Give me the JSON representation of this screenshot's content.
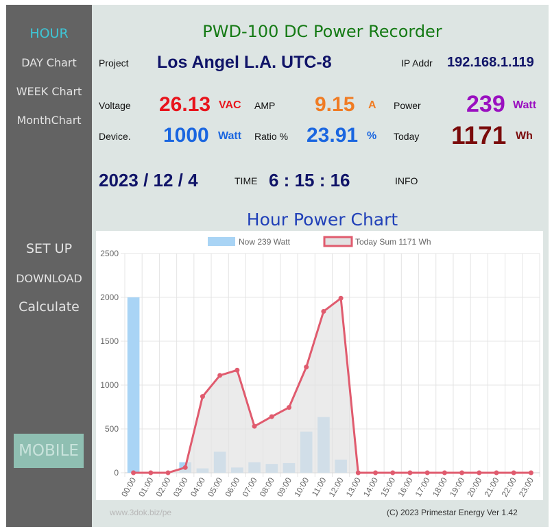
{
  "sidebar": {
    "hour": "HOUR",
    "day_chart": "DAY Chart",
    "week_chart": "WEEK Chart",
    "month_chart": "MonthChart",
    "setup": "SET UP",
    "download": "DOWNLOAD",
    "calculate": "Calculate",
    "mobile": "MOBILE"
  },
  "header": {
    "title": "PWD-100  DC Power Recorder"
  },
  "info": {
    "project_label": "Project",
    "project_value": "Los Angel L.A. UTC-8",
    "ip_label": "IP Addr",
    "ip_value": "192.168.1.119",
    "voltage_label": "Voltage",
    "voltage_value": "26.13",
    "voltage_unit": "VAC",
    "amp_label": "AMP",
    "amp_value": "9.15",
    "amp_unit": "A",
    "power_label": "Power",
    "power_value": "239",
    "power_unit": "Watt",
    "device_label": "Device.",
    "device_value": "1000",
    "device_unit": "Watt",
    "ratio_label": "Ratio %",
    "ratio_value": "23.91",
    "ratio_unit": "%",
    "today_label": "Today",
    "today_value": "1171",
    "today_unit": "Wh",
    "date_value": "2023 / 12 / 4",
    "time_label": "TIME",
    "time_value": "6 : 15 : 16",
    "info_label": "INFO"
  },
  "chart_title": "Hour Power Chart",
  "colors": {
    "voltage": "#e8141c",
    "amp": "#f07c24",
    "power": "#9a10c0",
    "device": "#1a66e0",
    "today": "#7a0b0b",
    "navy": "#101468",
    "bar_fill": "#a9d4f5",
    "line": "#e05b6e",
    "area": "#e2e2e2"
  },
  "chart_data": {
    "type": "bar",
    "categories": [
      "00:00",
      "01:00",
      "02:00",
      "03:00",
      "04:00",
      "05:00",
      "06:00",
      "07:00",
      "08:00",
      "09:00",
      "10:00",
      "11:00",
      "12:00",
      "13:00",
      "14:00",
      "15:00",
      "16:00",
      "17:00",
      "18:00",
      "19:00",
      "20:00",
      "21:00",
      "22:00",
      "23:00"
    ],
    "series": [
      {
        "name": "Now 239 Watt",
        "type": "bar",
        "values": [
          2000,
          0,
          0,
          120,
          50,
          240,
          60,
          120,
          100,
          110,
          470,
          635,
          150,
          0,
          0,
          0,
          0,
          0,
          0,
          0,
          0,
          0,
          0,
          0
        ]
      },
      {
        "name": "Today Sum 1171 Wh",
        "type": "line",
        "values": [
          0,
          0,
          0,
          60,
          870,
          1110,
          1170,
          530,
          640,
          745,
          1205,
          1840,
          1990,
          0,
          0,
          0,
          0,
          0,
          0,
          0,
          0,
          0,
          0,
          0
        ]
      }
    ],
    "yticks": [
      0,
      500,
      1000,
      1500,
      2000,
      2500
    ],
    "ylim": [
      0,
      2500
    ],
    "grid": true,
    "legend_position": "top"
  },
  "footer": {
    "left": "www.3dok.biz/pe",
    "right": "(C) 2023 Primestar Energy   Ver 1.42"
  }
}
